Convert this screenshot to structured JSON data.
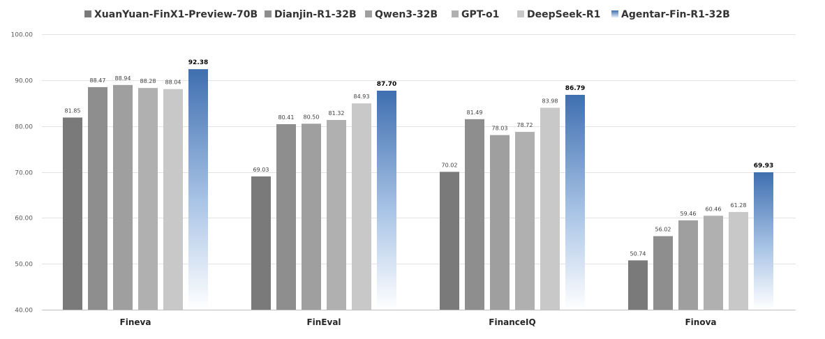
{
  "chart_data": {
    "type": "bar",
    "categories": [
      "Fineva",
      "FinEval",
      "FinanceIQ",
      "Finova"
    ],
    "series": [
      {
        "name": "XuanYuan-FinX1-Preview-70B",
        "color": "#7a7a7a",
        "values": [
          81.85,
          69.03,
          70.02,
          50.74
        ],
        "labels": [
          "81.85",
          "69.03",
          "70.02",
          "50.74"
        ]
      },
      {
        "name": "Dianjin-R1-32B",
        "color": "#8e8e8e",
        "values": [
          88.47,
          80.41,
          81.49,
          56.02
        ],
        "labels": [
          "88.47",
          "80.41",
          "81.49",
          "56.02"
        ]
      },
      {
        "name": "Qwen3-32B",
        "color": "#9f9f9f",
        "values": [
          88.94,
          80.5,
          78.03,
          59.46
        ],
        "labels": [
          "88.94",
          "80.50",
          "78.03",
          "59.46"
        ]
      },
      {
        "name": "GPT-o1",
        "color": "#b0b0b0",
        "values": [
          88.28,
          81.32,
          78.72,
          60.46
        ],
        "labels": [
          "88.28",
          "81.32",
          "78.72",
          "60.46"
        ]
      },
      {
        "name": "DeepSeek-R1",
        "color": "#c8c8c8",
        "values": [
          88.04,
          84.93,
          83.98,
          61.28
        ],
        "labels": [
          "88.04",
          "84.93",
          "83.98",
          "61.28"
        ]
      },
      {
        "name": "Agentar-Fin-R1-32B",
        "color": "#3f6fb0",
        "gradient_end": "#ffffff",
        "highlight": true,
        "values": [
          92.38,
          87.7,
          86.79,
          69.93
        ],
        "labels": [
          "92.38",
          "87.70",
          "86.79",
          "69.93"
        ]
      }
    ],
    "ylim": [
      40,
      100
    ],
    "yticks": [
      "40.00",
      "50.00",
      "60.00",
      "70.00",
      "80.00",
      "90.00",
      "100.00"
    ],
    "grid": true,
    "legend_position": "top"
  }
}
